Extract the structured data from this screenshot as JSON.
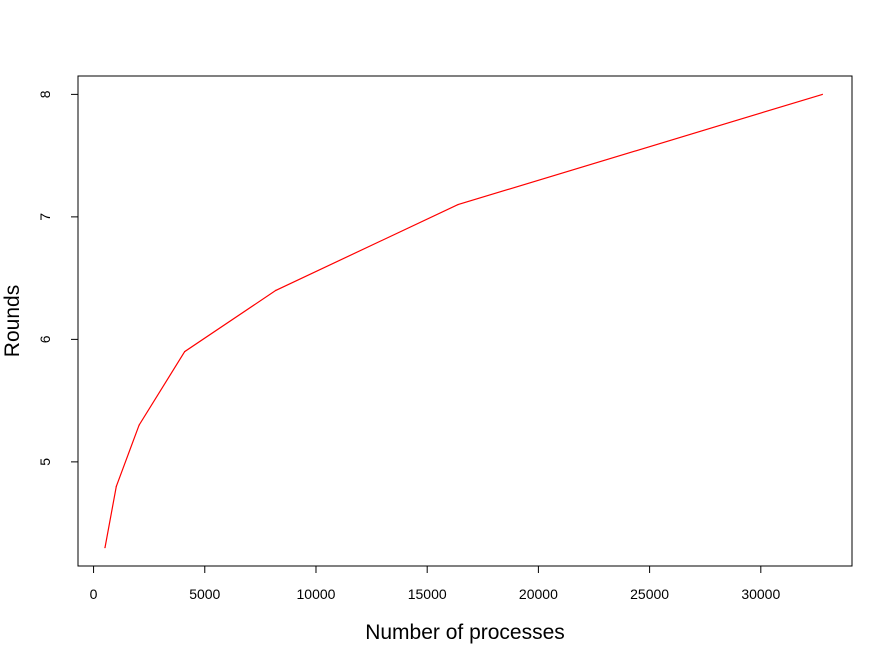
{
  "chart_data": {
    "type": "line",
    "title": "",
    "xlabel": "Number of processes",
    "ylabel": "Rounds",
    "xlim": [
      -700,
      34100
    ],
    "ylim": [
      4.15,
      8.15
    ],
    "x_ticks": [
      0,
      5000,
      10000,
      15000,
      20000,
      25000,
      30000
    ],
    "y_ticks": [
      5,
      6,
      7,
      8
    ],
    "grid": false,
    "legend": "none",
    "series": [
      {
        "color": "#ff0000",
        "x": [
          512,
          1024,
          2048,
          4096,
          8192,
          16384,
          32768
        ],
        "y": [
          4.3,
          4.8,
          5.3,
          5.9,
          6.4,
          7.1,
          8.0
        ]
      }
    ]
  }
}
